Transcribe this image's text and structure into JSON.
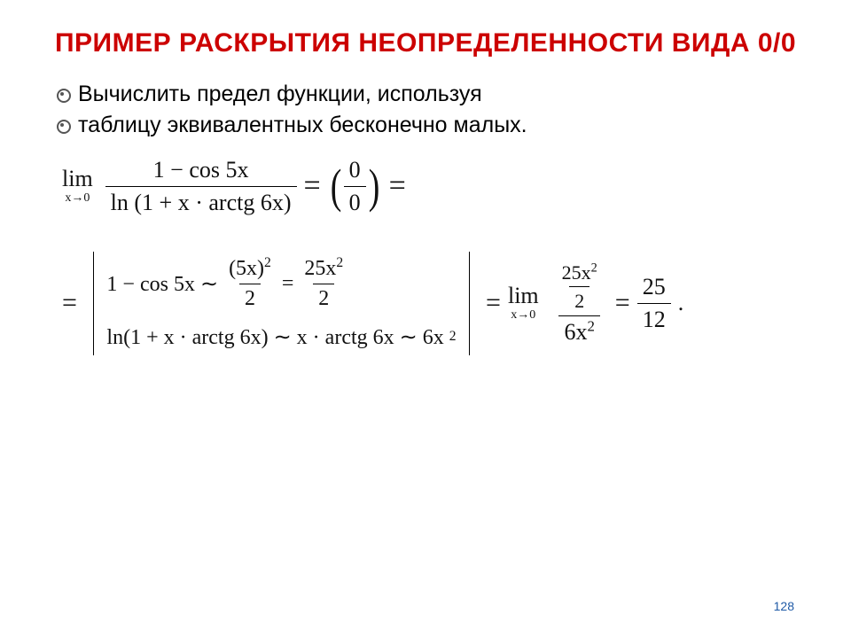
{
  "title": "ПРИМЕР РАСКРЫТИЯ НЕОПРЕДЕЛЕННОСТИ ВИДА 0/0",
  "bullets": [
    "Вычислить предел функции, используя",
    "таблицу эквивалентных бесконечно малых."
  ],
  "eq1": {
    "lim_word": "lim",
    "lim_sub": "x→0",
    "numerator": "1 − cos 5x",
    "denominator": "ln (1 + x · arctg 6x)",
    "eq_sign": "=",
    "indet_num": "0",
    "indet_den": "0",
    "trail_eq": "="
  },
  "eq2": {
    "lead_eq": "=",
    "line1_lhs": "1 − cos 5x ∼",
    "line1_frac1_num": "(5x)",
    "line1_frac1_num_sup": "2",
    "line1_frac1_den": "2",
    "line1_mid_eq": "=",
    "line1_frac2_num_base": "25x",
    "line1_frac2_num_sup": "2",
    "line1_frac2_den": "2",
    "line2_lhs": "ln(1 + x · arctg 6x) ∼ x · arctg 6x ∼ 6x",
    "line2_sup": "2",
    "after_bars_eq": "=",
    "lim_word": "lim",
    "lim_sub": "x→0",
    "big_num_inner_num_base": "25x",
    "big_num_inner_num_sup": "2",
    "big_num_inner_den": "2",
    "big_den_base": "6x",
    "big_den_sup": "2",
    "result_eq": "=",
    "result_num": "25",
    "result_den": "12",
    "period": "."
  },
  "page_number": "128",
  "colors": {
    "title": "#cc0000",
    "text": "#000000",
    "page_num": "#1f5aa6",
    "background": "#ffffff"
  }
}
